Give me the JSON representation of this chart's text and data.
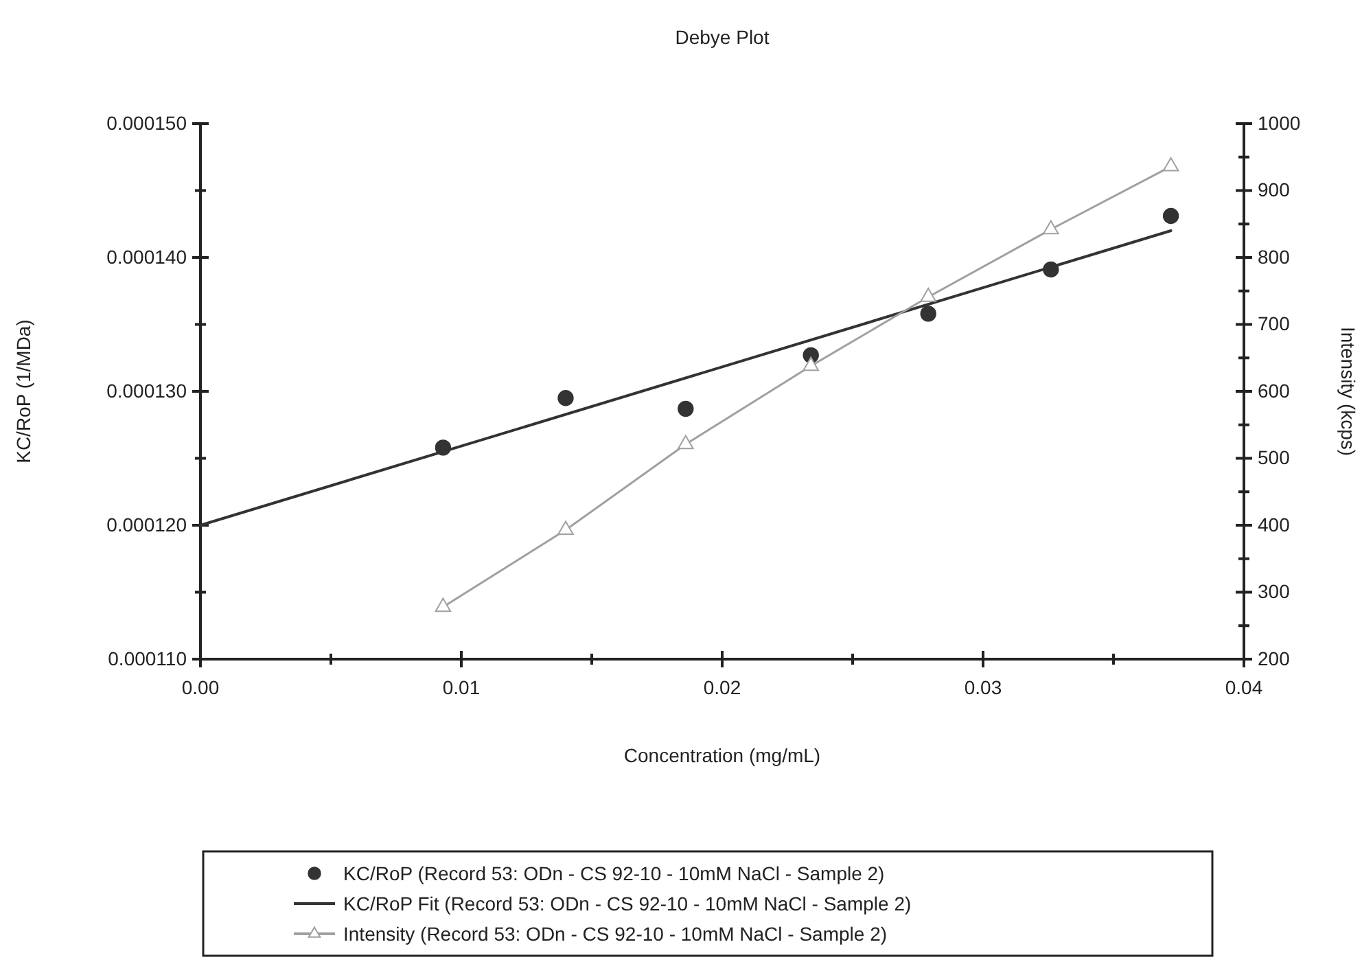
{
  "chart_data": {
    "type": "scatter",
    "title": "Debye Plot",
    "xlabel": "Concentration (mg/mL)",
    "ylabel": "KC/RoP (1/MDa)",
    "y2label": "Intensity (kcps)",
    "xlim": [
      0,
      0.04
    ],
    "xticks": [
      {
        "value": 0,
        "label": "0.00"
      },
      {
        "value": 0.005,
        "label": null
      },
      0.01,
      {
        "value": 0.015,
        "label": null
      },
      0.02,
      {
        "value": 0.025,
        "label": null
      },
      0.03,
      {
        "value": 0.035,
        "label": null
      },
      {
        "value": 0.04,
        "label": "0.04"
      }
    ],
    "ylim": [
      0.00011,
      0.00015
    ],
    "yticks": [
      {
        "value": 0.00011,
        "label": "0.000110"
      },
      {
        "value": 0.000115,
        "label": null
      },
      {
        "value": 0.00012,
        "label": "0.000120"
      },
      {
        "value": 0.000125,
        "label": null
      },
      {
        "value": 0.00013,
        "label": "0.000130"
      },
      {
        "value": 0.000135,
        "label": null
      },
      {
        "value": 0.00014,
        "label": "0.000140"
      },
      {
        "value": 0.000145,
        "label": null
      },
      {
        "value": 0.00015,
        "label": "0.000150"
      }
    ],
    "y2lim": [
      200,
      1000
    ],
    "y2ticks": [
      200,
      {
        "value": 250,
        "label": null
      },
      300,
      {
        "value": 350,
        "label": null
      },
      400,
      {
        "value": 450,
        "label": null
      },
      500,
      {
        "value": 550,
        "label": null
      },
      600,
      {
        "value": 650,
        "label": null
      },
      700,
      {
        "value": 750,
        "label": null
      },
      800,
      {
        "value": 850,
        "label": null
      },
      900,
      {
        "value": 950,
        "label": null
      },
      1000
    ],
    "grid": false,
    "legend": "bottom",
    "series": [
      {
        "name": "KC/RoP (Record 53: ODn - CS 92-10 - 10mM NaCl - Sample 2)",
        "type": "scatter",
        "marker": "circle",
        "color": "#333333",
        "x": [
          0.0093,
          0.014,
          0.0186,
          0.0234,
          0.0279,
          0.0326,
          0.0372
        ],
        "values": [
          0.0001258,
          0.0001295,
          0.0001287,
          0.0001327,
          0.0001358,
          0.0001391,
          0.0001431
        ]
      },
      {
        "name": "KC/RoP Fit (Record 53: ODn - CS 92-10 - 10mM NaCl - Sample 2)",
        "type": "line",
        "marker": "none",
        "color": "#333333",
        "x": [
          0,
          0.0372
        ],
        "values": [
          0.00012,
          0.000142
        ]
      },
      {
        "name": "Intensity (Record 53: ODn - CS 92-10 - 10mM NaCl - Sample 2)",
        "type": "line",
        "marker": "triangle",
        "axis": "y2",
        "color": "#a0a0a0",
        "x": [
          0.0093,
          0.014,
          0.0186,
          0.0234,
          0.0279,
          0.0326,
          0.0372
        ],
        "values": [
          278,
          393,
          521,
          638,
          741,
          842,
          936
        ]
      }
    ]
  }
}
